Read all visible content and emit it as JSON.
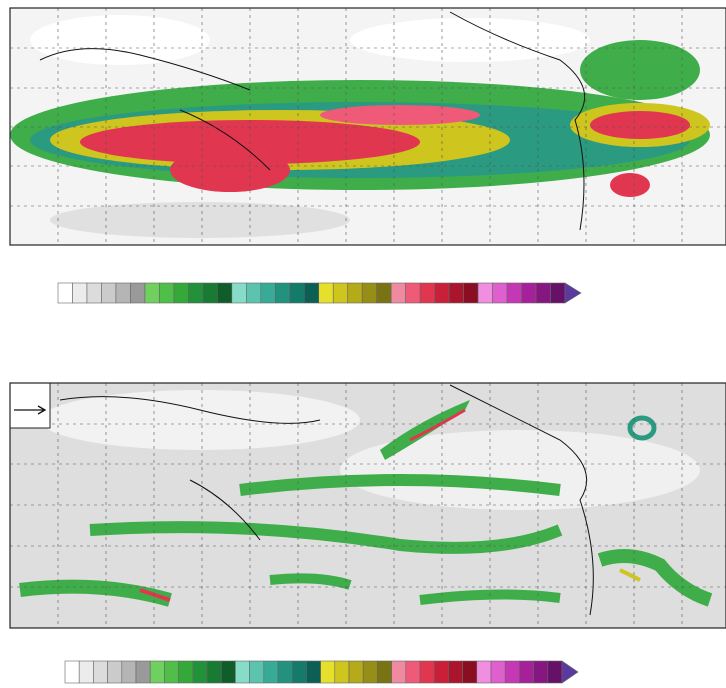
{
  "panels": [
    {
      "colorbar": [
        "#ffffff",
        "#ececec",
        "#dcdcdc",
        "#cbcbcb",
        "#b5b5b5",
        "#9a9a9a",
        "#6fcf5f",
        "#4fbf4a",
        "#35a83a",
        "#23903a",
        "#197a34",
        "#0f5e2a",
        "#86dcc6",
        "#5cc4ae",
        "#38ab97",
        "#22927f",
        "#147a69",
        "#0c5f54",
        "#e7e02a",
        "#cfc51f",
        "#b4aa1a",
        "#968e17",
        "#7a7314",
        "#f08aa0",
        "#ee5a78",
        "#e1364f",
        "#c91f38",
        "#aa142c",
        "#8a0d22",
        "#f08ee0",
        "#df5fce",
        "#c637b6",
        "#a6209a",
        "#861680",
        "#651168"
      ],
      "arrow_color": "#5a3a9e"
    },
    {
      "colorbar": [
        "#ffffff",
        "#ececec",
        "#dcdcdc",
        "#cbcbcb",
        "#b5b5b5",
        "#9a9a9a",
        "#6fcf5f",
        "#4fbf4a",
        "#35a83a",
        "#23903a",
        "#197a34",
        "#0f5e2a",
        "#86dcc6",
        "#5cc4ae",
        "#38ab97",
        "#22927f",
        "#147a69",
        "#0c5f54",
        "#e7e02a",
        "#cfc51f",
        "#b4aa1a",
        "#968e17",
        "#7a7314",
        "#f08aa0",
        "#ee5a78",
        "#e1364f",
        "#c91f38",
        "#aa142c",
        "#8a0d22",
        "#f08ee0",
        "#df5fce",
        "#c637b6",
        "#a6209a",
        "#861680",
        "#651168"
      ],
      "arrow_color": "#5a3a9e"
    }
  ]
}
